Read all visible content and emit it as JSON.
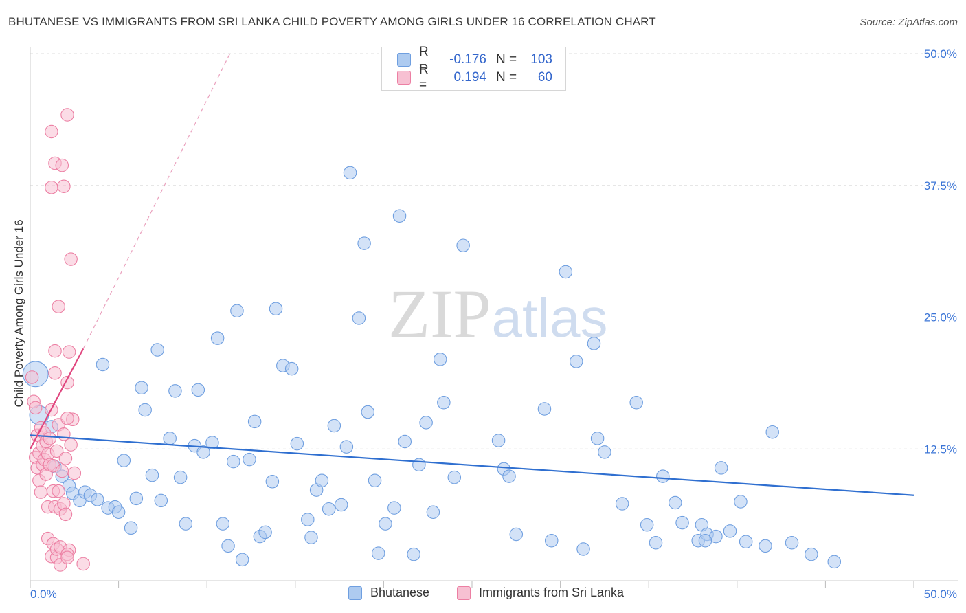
{
  "title": "BHUTANESE VS IMMIGRANTS FROM SRI LANKA CHILD POVERTY AMONG GIRLS UNDER 16 CORRELATION CHART",
  "source": "Source: ZipAtlas.com",
  "watermark": {
    "zip": "ZIP",
    "atlas": "atlas"
  },
  "legend_top": {
    "rows": [
      {
        "r_label": "R =",
        "r_value": "-0.176",
        "n_label": "N =",
        "n_value": "103"
      },
      {
        "r_label": "R =",
        "r_value": "0.194",
        "n_label": "N =",
        "n_value": "60"
      }
    ]
  },
  "legend_bottom": {
    "items": [
      "Bhutanese",
      "Immigrants from Sri Lanka"
    ]
  },
  "colors": {
    "blue_fill": "#aecbf0",
    "blue_stroke": "#6f9fe0",
    "blue_line": "#2f6fd0",
    "pink_fill": "#f7c0d2",
    "pink_stroke": "#ec7fa3",
    "pink_line": "#e0457e",
    "grid": "#dddddd",
    "tick_label": "#3a74d6"
  },
  "chart_data": {
    "type": "scatter",
    "title": "BHUTANESE VS IMMIGRANTS FROM SRI LANKA CHILD POVERTY AMONG GIRLS UNDER 16 CORRELATION CHART",
    "xlabel": "",
    "ylabel": "Child Poverty Among Girls Under 16",
    "xlim": [
      0,
      50
    ],
    "ylim": [
      0,
      50
    ],
    "x_tick_labels": [
      "0.0%",
      "50.0%"
    ],
    "y_ticks": [
      {
        "value": 12.5,
        "label": "12.5%"
      },
      {
        "value": 25.0,
        "label": "25.0%"
      },
      {
        "value": 37.5,
        "label": "37.5%"
      },
      {
        "value": 50.0,
        "label": "50.0%"
      }
    ],
    "grid": true,
    "series": [
      {
        "name": "Bhutanese",
        "R": -0.176,
        "N": 103,
        "trend": {
          "x0": 0,
          "y0": 13.8,
          "x1": 50,
          "y1": 8.1
        },
        "points": [
          [
            0.3,
            19.6,
            16
          ],
          [
            0.5,
            15.7,
            12
          ],
          [
            1.2,
            14.6,
            8
          ],
          [
            1.4,
            10.8,
            8
          ],
          [
            1.8,
            9.9,
            8
          ],
          [
            2.2,
            9.0,
            8
          ],
          [
            2.4,
            8.3,
            8
          ],
          [
            2.8,
            7.6,
            8
          ],
          [
            3.1,
            8.4,
            8
          ],
          [
            3.4,
            8.1,
            8
          ],
          [
            3.8,
            7.7,
            8
          ],
          [
            4.1,
            20.5,
            8
          ],
          [
            4.4,
            6.9,
            8
          ],
          [
            4.8,
            7.0,
            8
          ],
          [
            5.0,
            6.5,
            8
          ],
          [
            5.3,
            11.4,
            8
          ],
          [
            5.7,
            5.0,
            8
          ],
          [
            6.0,
            7.8,
            8
          ],
          [
            6.3,
            18.3,
            8
          ],
          [
            6.5,
            16.2,
            8
          ],
          [
            6.9,
            10.0,
            8
          ],
          [
            7.2,
            21.9,
            8
          ],
          [
            7.4,
            7.6,
            8
          ],
          [
            7.9,
            13.5,
            8
          ],
          [
            8.2,
            18.0,
            8
          ],
          [
            8.5,
            9.8,
            8
          ],
          [
            8.8,
            5.4,
            8
          ],
          [
            9.3,
            12.8,
            8
          ],
          [
            9.5,
            18.1,
            8
          ],
          [
            9.8,
            12.2,
            8
          ],
          [
            10.3,
            13.1,
            8
          ],
          [
            10.6,
            23.0,
            8
          ],
          [
            10.9,
            5.4,
            8
          ],
          [
            11.2,
            3.3,
            8
          ],
          [
            11.5,
            11.3,
            8
          ],
          [
            11.7,
            25.6,
            8
          ],
          [
            12.0,
            2.0,
            8
          ],
          [
            12.4,
            11.5,
            8
          ],
          [
            12.7,
            15.1,
            8
          ],
          [
            13.0,
            4.2,
            8
          ],
          [
            13.3,
            4.6,
            8
          ],
          [
            13.9,
            25.8,
            8
          ],
          [
            13.7,
            9.4,
            8
          ],
          [
            14.3,
            20.4,
            8
          ],
          [
            14.8,
            20.1,
            8
          ],
          [
            15.1,
            13.0,
            8
          ],
          [
            15.7,
            5.8,
            8
          ],
          [
            15.9,
            4.1,
            8
          ],
          [
            16.2,
            8.6,
            8
          ],
          [
            16.5,
            9.5,
            8
          ],
          [
            16.9,
            6.8,
            8
          ],
          [
            17.2,
            14.7,
            8
          ],
          [
            17.6,
            7.2,
            8
          ],
          [
            17.9,
            12.7,
            8
          ],
          [
            18.1,
            38.7,
            8
          ],
          [
            18.6,
            24.9,
            8
          ],
          [
            18.9,
            32.0,
            8
          ],
          [
            19.1,
            16.0,
            8
          ],
          [
            19.5,
            9.5,
            8
          ],
          [
            19.7,
            2.6,
            8
          ],
          [
            20.1,
            5.4,
            8
          ],
          [
            20.6,
            6.9,
            8
          ],
          [
            20.9,
            34.6,
            8
          ],
          [
            21.2,
            13.2,
            8
          ],
          [
            21.7,
            2.5,
            8
          ],
          [
            22.0,
            11.0,
            8
          ],
          [
            22.4,
            15.0,
            8
          ],
          [
            22.8,
            6.5,
            8
          ],
          [
            23.2,
            21.0,
            8
          ],
          [
            23.4,
            16.9,
            8
          ],
          [
            24.0,
            9.8,
            8
          ],
          [
            24.5,
            31.8,
            8
          ],
          [
            26.5,
            13.3,
            8
          ],
          [
            26.8,
            10.6,
            8
          ],
          [
            27.1,
            9.9,
            8
          ],
          [
            27.5,
            4.4,
            8
          ],
          [
            29.1,
            16.3,
            8
          ],
          [
            29.5,
            3.8,
            8
          ],
          [
            30.3,
            29.3,
            8
          ],
          [
            30.9,
            20.8,
            8
          ],
          [
            31.3,
            3.0,
            8
          ],
          [
            31.9,
            22.5,
            8
          ],
          [
            32.1,
            13.5,
            8
          ],
          [
            32.5,
            12.2,
            8
          ],
          [
            33.5,
            7.3,
            8
          ],
          [
            34.3,
            16.9,
            8
          ],
          [
            34.9,
            5.3,
            8
          ],
          [
            35.4,
            3.6,
            8
          ],
          [
            35.8,
            9.9,
            8
          ],
          [
            36.5,
            7.4,
            8
          ],
          [
            36.9,
            5.5,
            8
          ],
          [
            37.8,
            3.8,
            8
          ],
          [
            38.0,
            5.3,
            8
          ],
          [
            38.3,
            4.4,
            8
          ],
          [
            38.8,
            4.2,
            8
          ],
          [
            38.2,
            3.8,
            8
          ],
          [
            39.1,
            10.7,
            8
          ],
          [
            39.6,
            4.7,
            8
          ],
          [
            40.2,
            7.5,
            8
          ],
          [
            40.5,
            3.7,
            8
          ],
          [
            41.6,
            3.3,
            8
          ],
          [
            42.0,
            14.1,
            8
          ],
          [
            43.1,
            3.6,
            8
          ],
          [
            44.2,
            2.5,
            8
          ],
          [
            45.5,
            1.8,
            8
          ]
        ]
      },
      {
        "name": "Immigrants from Sri Lanka",
        "R": 0.194,
        "N": 60,
        "trend_solid": {
          "x0": 0,
          "y0": 12.5,
          "x1": 3.0,
          "y1": 22.0
        },
        "trend_dashed": {
          "x0": 3.0,
          "y0": 22.0,
          "x1": 11.3,
          "y1": 50.0
        },
        "points": [
          [
            0.1,
            19.3,
            8
          ],
          [
            0.2,
            17.0,
            8
          ],
          [
            0.3,
            16.4,
            8
          ],
          [
            0.3,
            11.7,
            8
          ],
          [
            0.4,
            13.8,
            8
          ],
          [
            0.4,
            10.7,
            8
          ],
          [
            0.5,
            12.1,
            8
          ],
          [
            0.5,
            9.5,
            8
          ],
          [
            0.6,
            8.4,
            8
          ],
          [
            0.6,
            14.5,
            8
          ],
          [
            0.7,
            11.0,
            8
          ],
          [
            0.7,
            12.8,
            8
          ],
          [
            0.8,
            14.0,
            8
          ],
          [
            0.8,
            11.5,
            8
          ],
          [
            0.9,
            13.2,
            8
          ],
          [
            0.9,
            10.1,
            8
          ],
          [
            1.0,
            12.0,
            8
          ],
          [
            1.0,
            7.0,
            8
          ],
          [
            1.0,
            4.0,
            8
          ],
          [
            1.1,
            11.0,
            8
          ],
          [
            1.1,
            13.5,
            8
          ],
          [
            1.2,
            42.6,
            8
          ],
          [
            1.2,
            37.3,
            8
          ],
          [
            1.2,
            2.3,
            8
          ],
          [
            1.3,
            8.5,
            8
          ],
          [
            1.3,
            10.9,
            8
          ],
          [
            1.3,
            3.5,
            8
          ],
          [
            1.4,
            21.8,
            8
          ],
          [
            1.4,
            39.6,
            8
          ],
          [
            1.4,
            19.7,
            8
          ],
          [
            1.4,
            7.0,
            8
          ],
          [
            1.5,
            12.3,
            8
          ],
          [
            1.5,
            2.2,
            8
          ],
          [
            1.5,
            3.0,
            8
          ],
          [
            1.6,
            8.5,
            8
          ],
          [
            1.6,
            26.0,
            8
          ],
          [
            1.6,
            14.8,
            8
          ],
          [
            1.7,
            6.8,
            8
          ],
          [
            1.7,
            3.2,
            8
          ],
          [
            1.7,
            1.5,
            8
          ],
          [
            1.8,
            10.4,
            8
          ],
          [
            1.8,
            39.4,
            8
          ],
          [
            1.9,
            7.3,
            8
          ],
          [
            1.9,
            37.4,
            8
          ],
          [
            1.9,
            13.9,
            8
          ],
          [
            2.0,
            11.6,
            8
          ],
          [
            2.0,
            6.3,
            8
          ],
          [
            2.1,
            18.8,
            8
          ],
          [
            2.2,
            21.7,
            8
          ],
          [
            2.2,
            2.9,
            8
          ],
          [
            2.3,
            12.9,
            8
          ],
          [
            2.4,
            15.3,
            8
          ],
          [
            2.5,
            10.2,
            8
          ],
          [
            2.1,
            15.4,
            8
          ],
          [
            1.2,
            16.2,
            8
          ],
          [
            2.1,
            2.5,
            8
          ],
          [
            2.1,
            2.2,
            8
          ],
          [
            2.1,
            44.2,
            8
          ],
          [
            2.3,
            30.5,
            8
          ],
          [
            3.0,
            1.6,
            8
          ]
        ]
      }
    ]
  }
}
